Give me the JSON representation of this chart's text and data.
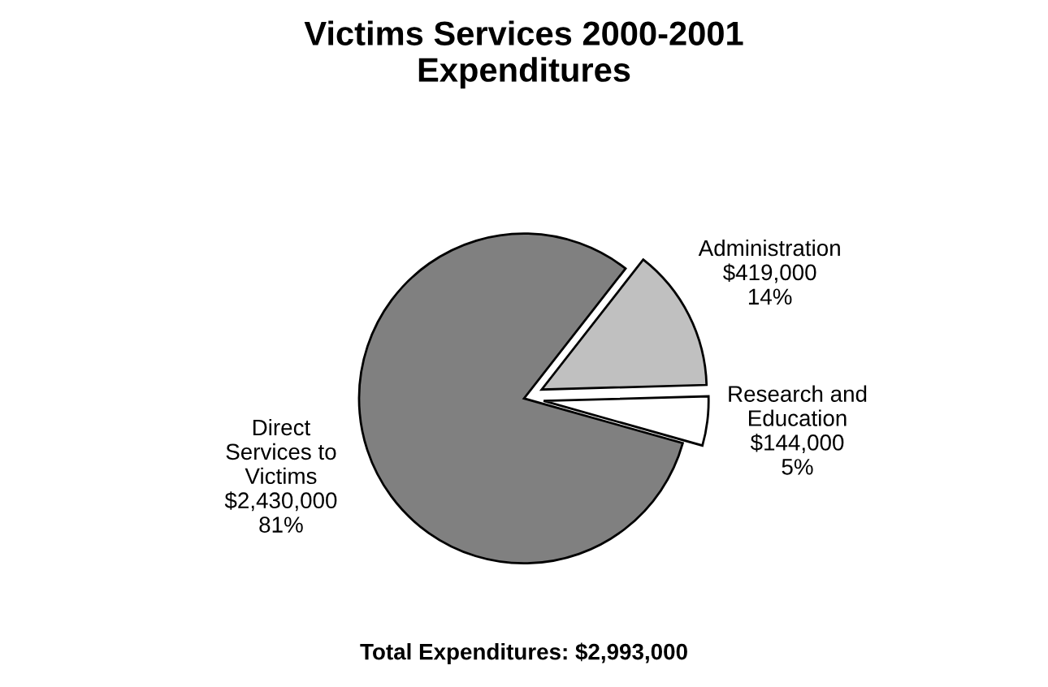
{
  "chart_data": {
    "type": "pie",
    "title": "Victims Services 2000-2001\nExpenditures",
    "categories": [
      "Direct\nServices to\nVictims",
      "Administration",
      "Research and\nEducation"
    ],
    "values": [
      2430000,
      419000,
      144000
    ],
    "value_labels": [
      "$2,430,000\n81%",
      "$419,000\n14%",
      "$144,000\n5%"
    ],
    "colors": [
      "#808080",
      "#c0c0c0",
      "#ffffff"
    ],
    "annotations": [
      "Total Expenditures: $2,993,000"
    ]
  }
}
